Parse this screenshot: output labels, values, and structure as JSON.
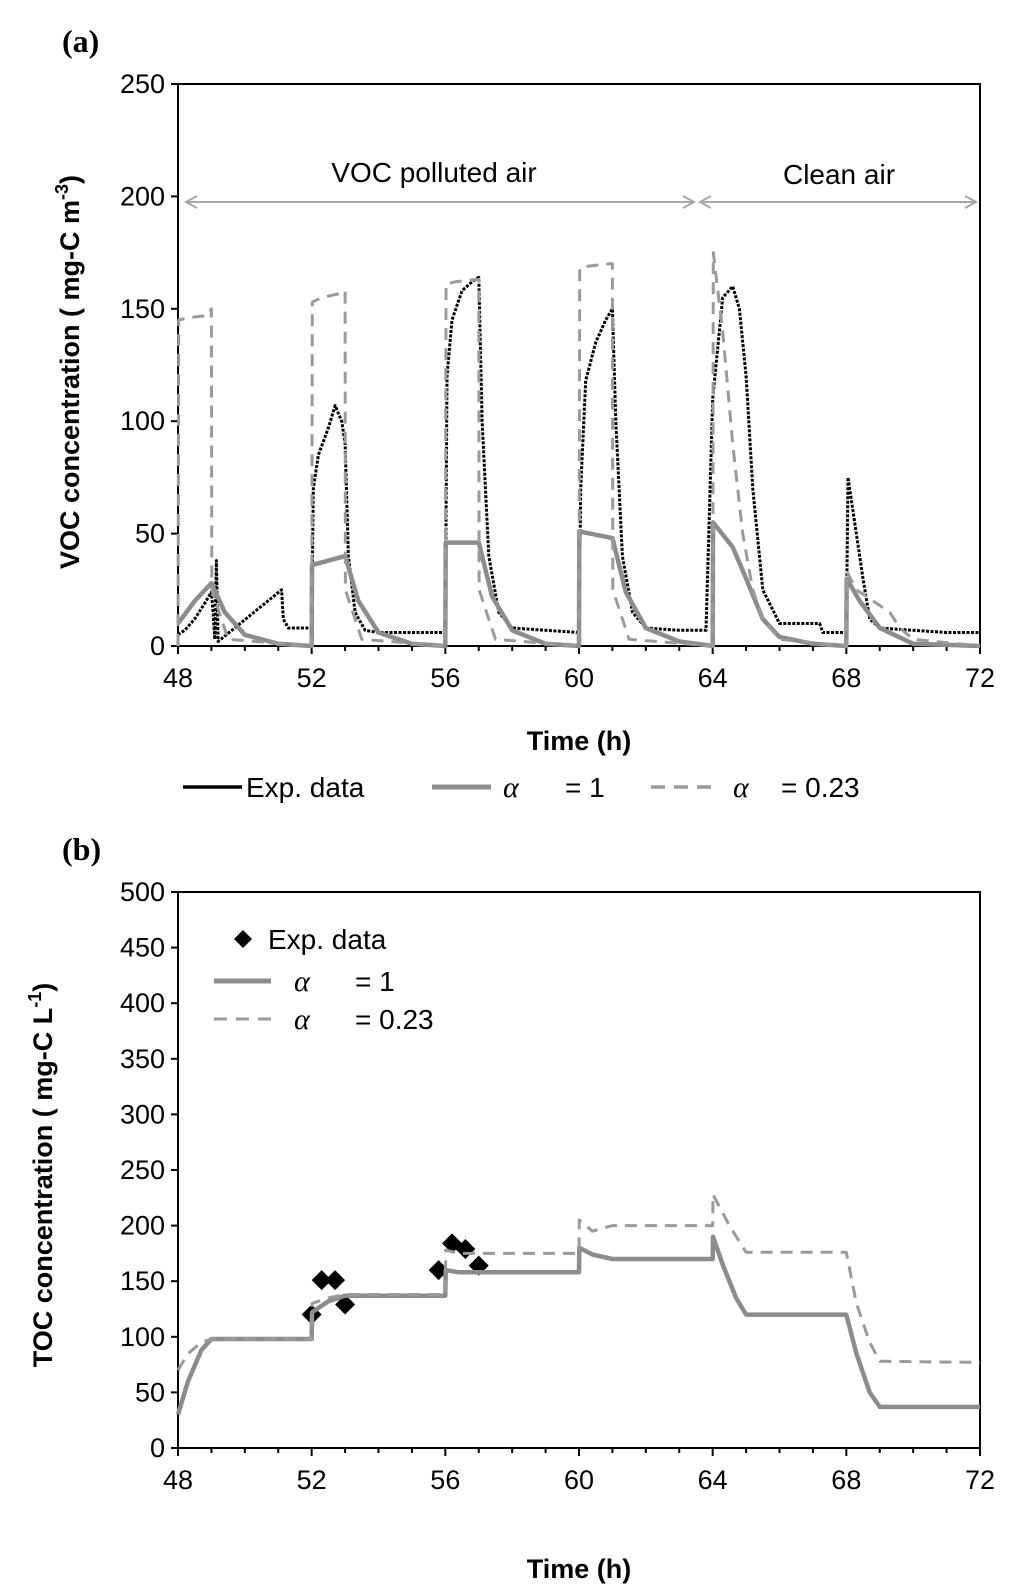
{
  "chart_data": [
    {
      "panel": "(a)",
      "type": "line",
      "xlabel": "Time (h)",
      "ylabel": "VOC concentration  ( mg-C m-3)",
      "ylabel_main": "VOC concentration  ( mg-C m",
      "ylabel_sup": "-3",
      "ylabel_tail": ")",
      "xlim": [
        48,
        72
      ],
      "ylim": [
        0,
        250
      ],
      "xticks": [
        "48",
        "52",
        "56",
        "60",
        "64",
        "68",
        "72"
      ],
      "yticks": [
        "0",
        "50",
        "100",
        "150",
        "200",
        "250"
      ],
      "annotations": [
        {
          "text": "VOC polluted air",
          "x_from": 48,
          "x_to": 63.6,
          "y": 197
        },
        {
          "text": "Clean air",
          "x_from": 63.6,
          "x_to": 72,
          "y": 197
        }
      ],
      "legend": {
        "position": "bottom",
        "entries": [
          {
            "label": "Exp. data",
            "style": "solid-black"
          },
          {
            "label_symbol": "α",
            "label": "= 1",
            "style": "solid-gray"
          },
          {
            "label_symbol": "α",
            "label": "= 0.23",
            "style": "dashed-gray"
          }
        ]
      },
      "series": [
        {
          "name": "Exp. data",
          "color": "#000000",
          "x": [
            48,
            48.2,
            48.5,
            48.8,
            49.0,
            49.05,
            49.1,
            49.15,
            49.2,
            51.1,
            51.15,
            51.3,
            52.0,
            52.05,
            52.2,
            52.5,
            52.7,
            52.9,
            53.0,
            53.1,
            53.3,
            53.6,
            54.0,
            55.0,
            56.0,
            56.05,
            56.2,
            56.5,
            56.8,
            57.0,
            57.1,
            57.3,
            57.6,
            58.0,
            59.0,
            60.0,
            60.05,
            60.2,
            60.5,
            60.8,
            61.0,
            61.1,
            61.3,
            61.6,
            62.0,
            63.0,
            63.6,
            63.8,
            64.0,
            64.3,
            64.6,
            64.8,
            65.0,
            65.2,
            65.5,
            66.0,
            66.5,
            67.2,
            67.3,
            68.0,
            68.05,
            68.2,
            68.5,
            68.7,
            69.0,
            70.0,
            71.0,
            72.0
          ],
          "y": [
            5,
            7,
            12,
            19,
            24,
            15,
            3,
            38,
            2,
            25,
            12,
            8,
            8,
            70,
            85,
            97,
            107,
            100,
            90,
            40,
            15,
            7,
            6,
            6,
            6,
            120,
            145,
            158,
            162,
            164,
            100,
            40,
            15,
            8,
            7,
            6,
            70,
            118,
            135,
            145,
            150,
            100,
            40,
            15,
            8,
            7,
            7,
            7,
            110,
            155,
            160,
            150,
            120,
            70,
            25,
            10,
            10,
            10,
            6,
            6,
            75,
            60,
            30,
            12,
            8,
            7,
            6,
            6
          ]
        },
        {
          "name": "α = 1",
          "color": "#8c8c8c",
          "x": [
            48,
            48.5,
            49.0,
            49.4,
            50.0,
            51.0,
            52.0,
            52.01,
            53.0,
            53.4,
            54.0,
            55.0,
            56.0,
            56.01,
            57.0,
            57.4,
            58.0,
            59.0,
            60.0,
            60.01,
            61.0,
            61.4,
            62.0,
            63.0,
            64.0,
            64.01,
            64.6,
            65.0,
            65.5,
            66.0,
            67.0,
            68.0,
            68.01,
            68.4,
            69.0,
            70.0,
            72.0
          ],
          "y": [
            10,
            20,
            28,
            15,
            5,
            1,
            0,
            36,
            40,
            20,
            6,
            1,
            0,
            46,
            46,
            22,
            7,
            1,
            0,
            51,
            48,
            24,
            8,
            2,
            0,
            55,
            44,
            30,
            12,
            4,
            1,
            0,
            30,
            20,
            8,
            1,
            0
          ]
        },
        {
          "name": "α = 0.23",
          "color": "#9a9a9a",
          "x": [
            48,
            48.02,
            48.3,
            48.9,
            49.0,
            49.01,
            49.5,
            52.0,
            52.02,
            52.3,
            52.9,
            53.0,
            53.01,
            53.5,
            56.0,
            56.02,
            56.3,
            56.9,
            57.0,
            57.01,
            57.5,
            60.0,
            60.02,
            60.3,
            60.9,
            61.0,
            61.01,
            61.5,
            64.0,
            64.02,
            64.3,
            64.6,
            64.9,
            65.2,
            65.5,
            66.0,
            68.0,
            68.02,
            68.3,
            69.0,
            69.3,
            69.6,
            70.0,
            72.0
          ],
          "y": [
            0,
            145,
            146,
            147,
            150,
            25,
            3,
            0,
            153,
            155,
            157,
            158,
            25,
            3,
            0,
            161,
            162,
            163,
            163,
            25,
            3,
            0,
            168,
            169,
            170,
            170,
            25,
            3,
            0,
            175,
            140,
            90,
            50,
            25,
            12,
            3,
            0,
            33,
            25,
            18,
            15,
            8,
            3,
            0
          ]
        }
      ]
    },
    {
      "panel": "(b)",
      "type": "line",
      "xlabel": "Time (h)",
      "ylabel": "TOC concentration  ( mg-C L-1)",
      "ylabel_main": "TOC concentration  ( mg-C L",
      "ylabel_sup": "-1",
      "ylabel_tail": ")",
      "xlim": [
        48,
        72
      ],
      "ylim": [
        0,
        500
      ],
      "xticks": [
        "48",
        "52",
        "56",
        "60",
        "64",
        "68",
        "72"
      ],
      "yticks": [
        "0",
        "50",
        "100",
        "150",
        "200",
        "250",
        "300",
        "350",
        "400",
        "450",
        "500"
      ],
      "legend": {
        "position": "top-left",
        "entries": [
          {
            "label": "Exp. data",
            "style": "diamond-black"
          },
          {
            "label_symbol": "α",
            "label": "= 1",
            "style": "solid-gray"
          },
          {
            "label_symbol": "α",
            "label": "=  0.23",
            "style": "dashed-gray"
          }
        ]
      },
      "series": [
        {
          "name": "Exp. data",
          "type": "scatter",
          "color": "#000000",
          "x": [
            52.0,
            52.3,
            52.7,
            53.0,
            55.8,
            56.2,
            56.6,
            57.0
          ],
          "y": [
            120,
            151,
            151,
            129,
            160,
            184,
            179,
            164
          ]
        },
        {
          "name": "α = 1",
          "color": "#8c8c8c",
          "x": [
            48,
            48.3,
            48.7,
            49.0,
            52.0,
            52.01,
            52.5,
            53.0,
            56.0,
            56.01,
            56.4,
            60.0,
            60.01,
            60.4,
            61.0,
            64.0,
            64.01,
            64.3,
            64.7,
            65.0,
            68.0,
            68.3,
            68.7,
            69.0,
            72.0
          ],
          "y": [
            30,
            60,
            88,
            98,
            98,
            122,
            132,
            137,
            137,
            160,
            158,
            158,
            180,
            174,
            170,
            170,
            190,
            165,
            135,
            120,
            120,
            85,
            50,
            37,
            37
          ]
        },
        {
          "name": "α = 0.23",
          "color": "#9a9a9a",
          "x": [
            48,
            48.3,
            48.7,
            49.0,
            52.0,
            52.01,
            52.5,
            53.0,
            56.0,
            56.01,
            56.4,
            60.0,
            60.01,
            60.4,
            61.0,
            64.0,
            64.01,
            64.5,
            65.0,
            68.0,
            68.3,
            68.7,
            69.0,
            72.0
          ],
          "y": [
            70,
            85,
            95,
            98,
            98,
            130,
            135,
            138,
            138,
            178,
            175,
            175,
            205,
            195,
            200,
            200,
            228,
            200,
            176,
            176,
            130,
            95,
            78,
            77
          ]
        }
      ]
    }
  ]
}
